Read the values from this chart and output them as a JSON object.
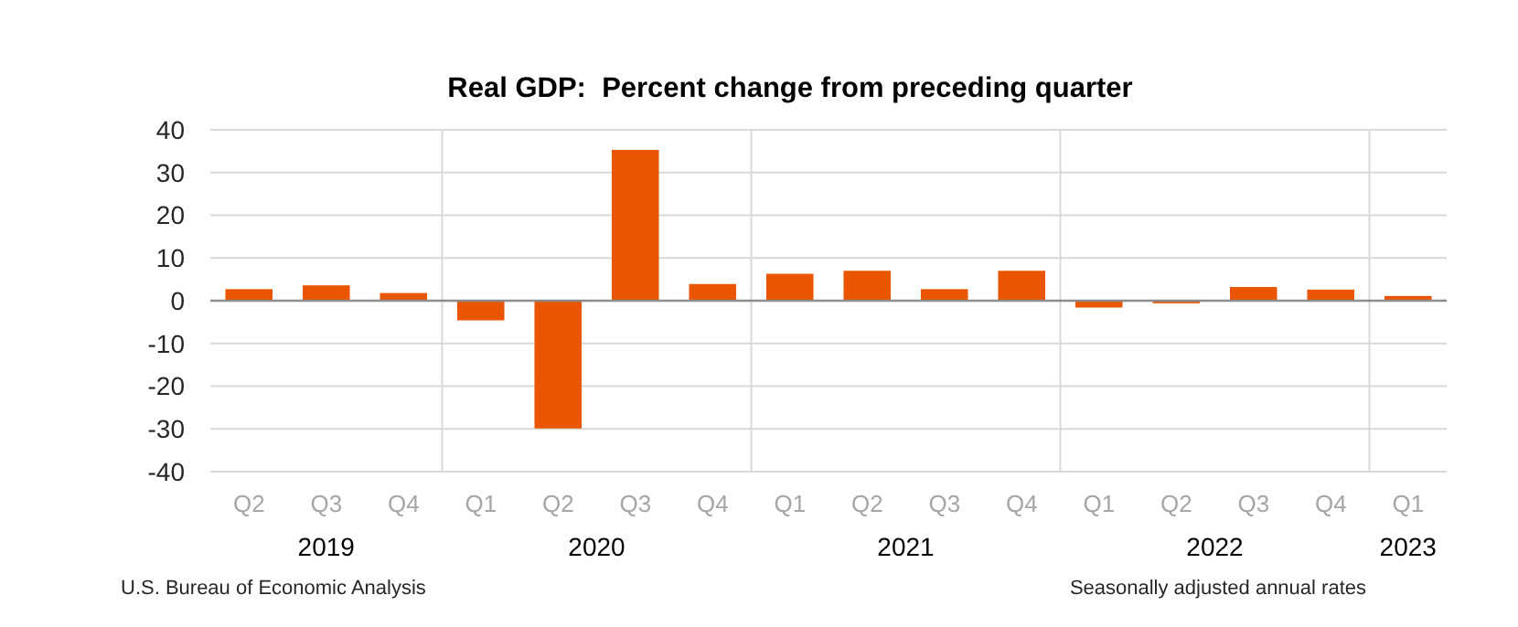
{
  "chart_data": {
    "type": "bar",
    "title": "Real GDP:  Percent change from preceding quarter",
    "categories": [
      "Q2",
      "Q3",
      "Q4",
      "Q1",
      "Q2",
      "Q3",
      "Q4",
      "Q1",
      "Q2",
      "Q3",
      "Q4",
      "Q1",
      "Q2",
      "Q3",
      "Q4",
      "Q1"
    ],
    "values": [
      2.7,
      3.6,
      1.8,
      -4.6,
      -29.9,
      35.3,
      3.9,
      6.3,
      7.0,
      2.7,
      7.0,
      -1.6,
      -0.6,
      3.2,
      2.6,
      1.1
    ],
    "color": "#e95500",
    "ylim": [
      -40,
      40
    ],
    "yticks": [
      -40,
      -30,
      -20,
      -10,
      0,
      10,
      20,
      30,
      40
    ],
    "grid": "y",
    "annotations": [
      "2019",
      "2020",
      "2021",
      "2022",
      "2023",
      "U.S. Bureau of Economic Analysis",
      "Seasonally adjusted annual rates"
    ]
  }
}
